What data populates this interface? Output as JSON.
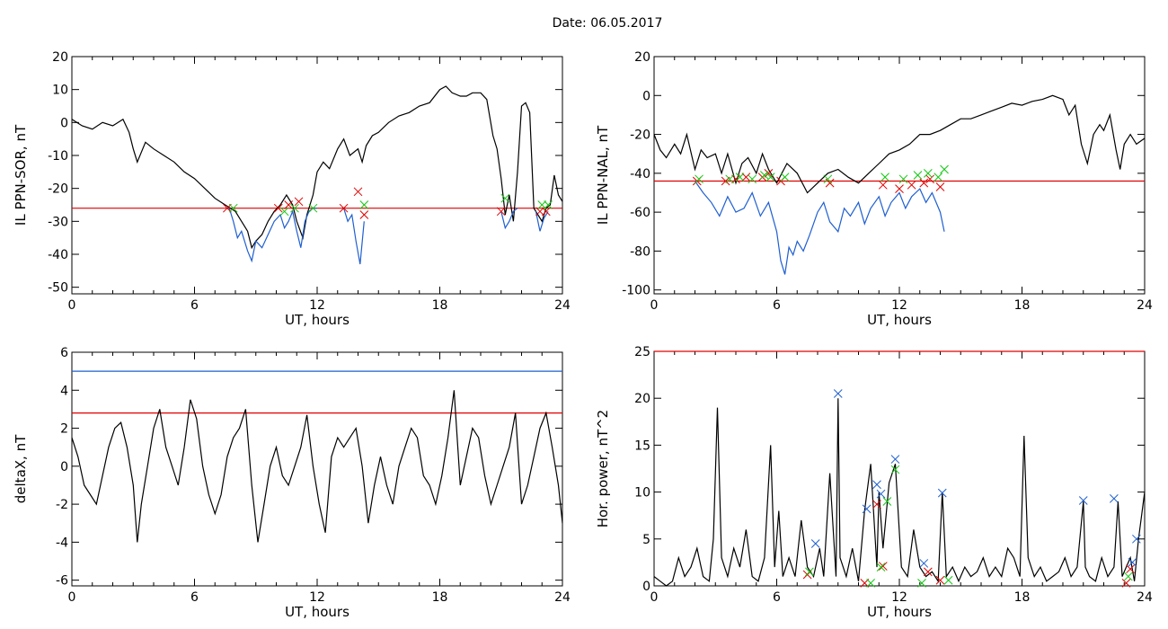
{
  "figure": {
    "title": "Date:  06.05.2017"
  },
  "chart_data": [
    {
      "id": "ppn-sor",
      "type": "line",
      "xlabel": "UT, hours",
      "ylabel": "IL PPN-SOR, nT",
      "xlim": [
        0,
        24
      ],
      "ylim": [
        -52,
        20
      ],
      "xticks": [
        0,
        6,
        12,
        18,
        24
      ],
      "yticks": [
        -50,
        -40,
        -30,
        -20,
        -10,
        0,
        10,
        20
      ],
      "hlines": [
        {
          "y": -26,
          "color": "#e00000"
        }
      ],
      "series": [
        {
          "color": "#000000",
          "x": [
            0,
            0.5,
            1,
            1.5,
            2,
            2.5,
            2.8,
            3,
            3.2,
            3.6,
            4,
            4.5,
            5,
            5.5,
            6,
            6.5,
            7,
            7.5,
            8,
            8.3,
            8.6,
            8.8,
            9,
            9.3,
            9.6,
            9.9,
            10.2,
            10.5,
            10.8,
            11,
            11.3,
            11.5,
            11.8,
            12,
            12.3,
            12.6,
            13,
            13.3,
            13.6,
            14,
            14.2,
            14.4,
            14.7,
            15,
            15.5,
            16,
            16.5,
            17,
            17.5,
            18,
            18.3,
            18.6,
            19,
            19.3,
            19.6,
            20,
            20.3,
            20.6,
            20.8,
            21,
            21.2,
            21.4,
            21.6,
            21.8,
            22,
            22.2,
            22.4,
            22.6,
            22.8,
            23,
            23.2,
            23.4,
            23.6,
            23.8,
            24
          ],
          "y": [
            1,
            -1,
            -2,
            0,
            -1,
            1,
            -3,
            -8,
            -12,
            -6,
            -8,
            -10,
            -12,
            -15,
            -17,
            -20,
            -23,
            -25,
            -27,
            -30,
            -33,
            -38,
            -36,
            -34,
            -30,
            -27,
            -25,
            -22,
            -25,
            -30,
            -35,
            -28,
            -22,
            -15,
            -12,
            -14,
            -8,
            -5,
            -10,
            -8,
            -12,
            -7,
            -4,
            -3,
            0,
            2,
            3,
            5,
            6,
            10,
            11,
            9,
            8,
            8,
            9,
            9,
            7,
            -4,
            -8,
            -17,
            -28,
            -22,
            -30,
            -15,
            5,
            6,
            3,
            -26,
            -28,
            -30,
            -26,
            -25,
            -16,
            -22,
            -24
          ]
        },
        {
          "color": "#1f5fd0",
          "x": [
            7.7,
            7.9,
            8.1,
            8.3,
            8.6,
            8.8,
            9,
            9.3,
            9.6,
            9.9,
            10.2,
            10.4,
            10.6,
            10.8,
            11,
            11.2,
            11.4,
            11.6,
            11.8,
            12
          ],
          "y": [
            -26,
            -30,
            -35,
            -33,
            -39,
            -42,
            -36,
            -38,
            -34,
            -30,
            -28,
            -32,
            -30,
            -27,
            -33,
            -38,
            -30,
            -27,
            -26,
            -26
          ]
        },
        {
          "color": "#1f5fd0",
          "x": [
            13.3,
            13.5,
            13.7,
            13.9,
            14.1,
            14.3
          ],
          "y": [
            -26,
            -30,
            -28,
            -36,
            -43,
            -30
          ]
        },
        {
          "color": "#1f5fd0",
          "x": [
            21,
            21.2,
            21.4,
            21.6,
            21.8
          ],
          "y": [
            -27,
            -32,
            -30,
            -27,
            -26
          ]
        },
        {
          "color": "#1f5fd0",
          "x": [
            22.7,
            22.9,
            23.1,
            23.3
          ],
          "y": [
            -27,
            -33,
            -29,
            -27
          ]
        }
      ],
      "markers": [
        {
          "color": "#e00000",
          "x": [
            7.6,
            10.1,
            10.6,
            11.1,
            13.3,
            14.0,
            14.3,
            21.0,
            22.9,
            23.2
          ],
          "y": [
            -26,
            -26,
            -25,
            -24,
            -26,
            -21,
            -28,
            -27,
            -27,
            -27
          ]
        },
        {
          "color": "#11c811",
          "x": [
            7.9,
            10.4,
            10.9,
            11.8,
            14.3,
            21.2,
            23.0,
            23.3
          ],
          "y": [
            -26,
            -27,
            -26,
            -26,
            -25,
            -23,
            -25,
            -25
          ]
        }
      ]
    },
    {
      "id": "ppn-nal",
      "type": "line",
      "xlabel": "UT, hours",
      "ylabel": "IL PPN-NAL, nT",
      "xlim": [
        0,
        24
      ],
      "ylim": [
        -102,
        20
      ],
      "xticks": [
        0,
        6,
        12,
        18,
        24
      ],
      "yticks": [
        -100,
        -80,
        -60,
        -40,
        -20,
        0,
        20
      ],
      "hlines": [
        {
          "y": -44,
          "color": "#e00000"
        }
      ],
      "series": [
        {
          "color": "#000000",
          "x": [
            0,
            0.3,
            0.6,
            1,
            1.3,
            1.6,
            2,
            2.3,
            2.6,
            3,
            3.3,
            3.6,
            4,
            4.3,
            4.6,
            5,
            5.3,
            5.6,
            6,
            6.5,
            7,
            7.5,
            8,
            8.5,
            9,
            9.5,
            10,
            10.5,
            11,
            11.5,
            12,
            12.5,
            13,
            13.5,
            14,
            14.5,
            15,
            15.5,
            16,
            16.5,
            17,
            17.5,
            18,
            18.5,
            19,
            19.5,
            20,
            20.3,
            20.6,
            20.9,
            21.2,
            21.5,
            21.8,
            22,
            22.3,
            22.6,
            22.8,
            23,
            23.3,
            23.6,
            24
          ],
          "y": [
            -20,
            -28,
            -32,
            -25,
            -30,
            -20,
            -38,
            -28,
            -32,
            -30,
            -40,
            -30,
            -45,
            -35,
            -32,
            -40,
            -30,
            -38,
            -45,
            -35,
            -40,
            -50,
            -45,
            -40,
            -38,
            -42,
            -45,
            -40,
            -35,
            -30,
            -28,
            -25,
            -20,
            -20,
            -18,
            -15,
            -12,
            -12,
            -10,
            -8,
            -6,
            -4,
            -5,
            -3,
            -2,
            0,
            -2,
            -10,
            -5,
            -25,
            -35,
            -20,
            -15,
            -18,
            -10,
            -28,
            -38,
            -25,
            -20,
            -25,
            -22
          ]
        },
        {
          "color": "#1f5fd0",
          "x": [
            2,
            2.4,
            2.8,
            3.2,
            3.6,
            4,
            4.4,
            4.8,
            5.2,
            5.6,
            6,
            6.2,
            6.4,
            6.6,
            6.8,
            7,
            7.3,
            7.6,
            8,
            8.3,
            8.6,
            9,
            9.3,
            9.6,
            10,
            10.3,
            10.6,
            11,
            11.3,
            11.6,
            12,
            12.3,
            12.6,
            13,
            13.3,
            13.6,
            14,
            14.2
          ],
          "y": [
            -44,
            -50,
            -55,
            -62,
            -52,
            -60,
            -58,
            -50,
            -62,
            -55,
            -70,
            -85,
            -92,
            -78,
            -82,
            -75,
            -80,
            -72,
            -60,
            -55,
            -65,
            -70,
            -58,
            -62,
            -55,
            -66,
            -58,
            -52,
            -62,
            -55,
            -50,
            -58,
            -52,
            -48,
            -55,
            -50,
            -60,
            -70
          ]
        }
      ],
      "markers": [
        {
          "color": "#e00000",
          "x": [
            2.1,
            3.5,
            4.0,
            4.5,
            5.3,
            5.6,
            6.2,
            8.6,
            11.2,
            12.0,
            12.6,
            13.2,
            13.5,
            14.0
          ],
          "y": [
            -44,
            -44,
            -43,
            -42,
            -42,
            -40,
            -44,
            -45,
            -46,
            -48,
            -46,
            -45,
            -43,
            -47
          ]
        },
        {
          "color": "#11c811",
          "x": [
            2.2,
            3.7,
            4.2,
            4.8,
            5.4,
            5.7,
            6.4,
            8.5,
            11.3,
            12.2,
            12.9,
            13.4,
            13.9,
            14.2
          ],
          "y": [
            -43,
            -43,
            -42,
            -43,
            -41,
            -42,
            -42,
            -43,
            -42,
            -43,
            -41,
            -40,
            -42,
            -38
          ]
        }
      ]
    },
    {
      "id": "deltax",
      "type": "line",
      "xlabel": "UT, hours",
      "ylabel": "deltaX, nT",
      "xlim": [
        0,
        24
      ],
      "ylim": [
        -6.3,
        6
      ],
      "xticks": [
        0,
        6,
        12,
        18,
        24
      ],
      "yticks": [
        -6,
        -4,
        -2,
        0,
        2,
        4,
        6
      ],
      "hlines": [
        {
          "y": 5.0,
          "color": "#1f5fd0"
        },
        {
          "y": 2.8,
          "color": "#e00000"
        }
      ],
      "series": [
        {
          "color": "#000000",
          "x": [
            0,
            0.3,
            0.6,
            0.9,
            1.2,
            1.5,
            1.8,
            2.1,
            2.4,
            2.7,
            3.0,
            3.2,
            3.4,
            3.7,
            4.0,
            4.3,
            4.6,
            4.9,
            5.2,
            5.5,
            5.8,
            6.1,
            6.4,
            6.7,
            7.0,
            7.3,
            7.6,
            7.9,
            8.2,
            8.5,
            8.8,
            9.1,
            9.4,
            9.7,
            10.0,
            10.3,
            10.6,
            10.9,
            11.2,
            11.5,
            11.8,
            12.1,
            12.4,
            12.7,
            13.0,
            13.3,
            13.6,
            13.9,
            14.2,
            14.5,
            14.8,
            15.1,
            15.4,
            15.7,
            16.0,
            16.3,
            16.6,
            16.9,
            17.2,
            17.5,
            17.8,
            18.1,
            18.4,
            18.7,
            19.0,
            19.3,
            19.6,
            19.9,
            20.2,
            20.5,
            20.8,
            21.1,
            21.4,
            21.7,
            22.0,
            22.3,
            22.6,
            22.9,
            23.2,
            23.5,
            23.8,
            24
          ],
          "y": [
            1.5,
            0.5,
            -1,
            -1.5,
            -2,
            -0.5,
            1,
            2,
            2.3,
            1,
            -1,
            -4,
            -2,
            0,
            2,
            3,
            1,
            0,
            -1,
            1,
            3.5,
            2.5,
            0,
            -1.5,
            -2.5,
            -1.5,
            0.5,
            1.5,
            2,
            3,
            -1,
            -4,
            -2,
            0,
            1,
            -0.5,
            -1,
            0,
            1,
            2.7,
            0,
            -2,
            -3.5,
            0.5,
            1.5,
            1,
            1.5,
            2,
            0,
            -3,
            -1,
            0.5,
            -1,
            -2,
            0,
            1,
            2,
            1.5,
            -0.5,
            -1,
            -2,
            -0.5,
            1.5,
            4,
            -1,
            0.5,
            2,
            1.5,
            -0.5,
            -2,
            -1,
            0,
            1,
            2.8,
            -2,
            -1,
            0.5,
            2,
            2.8,
            1,
            -1,
            -3
          ]
        }
      ],
      "markers": []
    },
    {
      "id": "hor-power",
      "type": "line",
      "xlabel": "UT, hours",
      "ylabel": "Hor. power, nT^2",
      "xlim": [
        0,
        24
      ],
      "ylim": [
        0,
        25
      ],
      "xticks": [
        0,
        6,
        12,
        18,
        24
      ],
      "yticks": [
        0,
        5,
        10,
        15,
        20,
        25
      ],
      "hlines": [
        {
          "y": 25,
          "color": "#e00000"
        }
      ],
      "series": [
        {
          "color": "#000000",
          "x": [
            0,
            0.3,
            0.6,
            0.9,
            1.2,
            1.5,
            1.8,
            2.1,
            2.4,
            2.7,
            2.9,
            3.1,
            3.3,
            3.6,
            3.9,
            4.2,
            4.5,
            4.8,
            5.1,
            5.4,
            5.7,
            5.9,
            6.1,
            6.3,
            6.6,
            6.9,
            7.2,
            7.5,
            7.8,
            8.1,
            8.3,
            8.6,
            8.9,
            9.0,
            9.1,
            9.4,
            9.7,
            10.0,
            10.3,
            10.6,
            10.9,
            11.0,
            11.2,
            11.5,
            11.8,
            12.1,
            12.4,
            12.7,
            13.0,
            13.3,
            13.6,
            13.9,
            14.1,
            14.3,
            14.6,
            14.9,
            15.2,
            15.5,
            15.8,
            16.1,
            16.4,
            16.7,
            17.0,
            17.3,
            17.6,
            17.9,
            18.1,
            18.3,
            18.6,
            18.9,
            19.2,
            19.5,
            19.8,
            20.1,
            20.4,
            20.7,
            21.0,
            21.1,
            21.3,
            21.6,
            21.9,
            22.2,
            22.5,
            22.7,
            22.9,
            23.1,
            23.3,
            23.5,
            23.7,
            24
          ],
          "y": [
            1,
            0.5,
            0,
            0.5,
            3,
            1,
            2,
            4,
            1,
            0.5,
            5,
            19,
            3,
            1,
            4,
            2,
            6,
            1,
            0.5,
            3,
            15,
            2,
            8,
            1,
            3,
            1,
            7,
            2,
            1,
            4,
            1,
            12,
            1,
            20,
            3,
            1,
            4,
            0.5,
            8,
            13,
            2,
            10,
            4,
            11,
            13,
            2,
            1,
            6,
            2,
            1,
            1.5,
            0.5,
            10,
            1,
            2,
            0.5,
            2,
            1,
            1.5,
            3,
            1,
            2,
            1,
            4,
            3,
            1,
            16,
            3,
            1,
            2,
            0.5,
            1,
            1.5,
            3,
            1,
            2,
            9,
            2,
            1,
            0.5,
            3,
            1,
            2,
            9,
            1,
            2,
            3,
            0.5,
            5,
            10
          ]
        }
      ],
      "markers": [
        {
          "color": "#1f5fd0",
          "x": [
            7.9,
            9.0,
            10.4,
            10.9,
            11.1,
            11.8,
            13.2,
            14.1,
            21.0,
            22.5,
            23.4,
            23.6
          ],
          "y": [
            4.5,
            20.5,
            8.2,
            10.8,
            9.8,
            13.5,
            2.4,
            9.9,
            9.1,
            9.3,
            2.5,
            5.0
          ]
        },
        {
          "color": "#e00000",
          "x": [
            7.5,
            10.3,
            10.9,
            11.2,
            13.4,
            14.0,
            23.1,
            23.3
          ],
          "y": [
            1.2,
            0.3,
            8.7,
            2.1,
            1.5,
            0.6,
            0.3,
            1.8
          ]
        },
        {
          "color": "#11c811",
          "x": [
            7.6,
            10.6,
            11.1,
            11.4,
            11.8,
            13.1,
            14.4,
            23.2
          ],
          "y": [
            1.5,
            0.3,
            2.0,
            9.0,
            12.4,
            0.3,
            0.6,
            1.0
          ]
        }
      ]
    }
  ]
}
